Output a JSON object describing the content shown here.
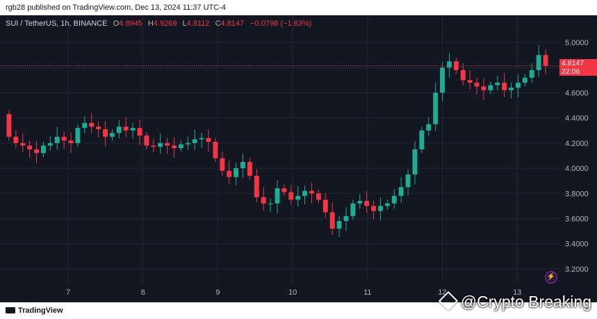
{
  "header": {
    "published": "rgb28 published on TradingView.com, Dec 13, 2024 11:37 UTC-4"
  },
  "legend": {
    "symbol": "SUI / TetherUS, 1h, BINANCE",
    "o_label": "O",
    "o_value": "4.8945",
    "h_label": "H",
    "h_value": "4.9269",
    "l_label": "L",
    "l_value": "4.8112",
    "c_label": "C",
    "c_value": "4.8147",
    "change": "−0.0798 (−1.63%)"
  },
  "last_price": {
    "price": "4.8147",
    "countdown": "22:06"
  },
  "footer": {
    "tradingview_logo": "TradingView",
    "watermark": "@Crypto Breaking",
    "watermark_icon": "diamond-logo-icon"
  },
  "colors": {
    "background": "#131722",
    "grid": "#232632",
    "up": "#22ab94",
    "down": "#f23645",
    "axis_text": "#b2b5be"
  },
  "chart_data": {
    "type": "candlestick",
    "symbol": "SUI / TetherUS",
    "interval": "1h",
    "exchange": "BINANCE",
    "x_ticks": [
      "7",
      "8",
      "9",
      "10",
      "11",
      "12",
      "13"
    ],
    "y_ticks": [
      "5.0000",
      "4.8000",
      "4.6000",
      "4.4000",
      "4.2000",
      "4.0000",
      "3.8000",
      "3.6000",
      "3.4000",
      "3.2000"
    ],
    "ylim": [
      3.1,
      5.05
    ],
    "grid": true,
    "last_price": 4.8147,
    "close_series": [
      4.25,
      4.2,
      4.18,
      4.15,
      4.12,
      4.18,
      4.2,
      4.25,
      4.22,
      4.2,
      4.32,
      4.36,
      4.33,
      4.31,
      4.25,
      4.28,
      4.33,
      4.3,
      4.32,
      4.26,
      4.18,
      4.17,
      4.2,
      4.18,
      4.16,
      4.19,
      4.2,
      4.23,
      4.24,
      4.21,
      4.08,
      3.98,
      3.93,
      4.0,
      4.05,
      3.94,
      3.77,
      3.72,
      3.72,
      3.84,
      3.81,
      3.75,
      3.78,
      3.82,
      3.8,
      3.75,
      3.65,
      3.52,
      3.58,
      3.62,
      3.72,
      3.74,
      3.7,
      3.66,
      3.7,
      3.72,
      3.78,
      3.85,
      3.95,
      4.15,
      4.3,
      4.35,
      4.6,
      4.8,
      4.85,
      4.78,
      4.7,
      4.68,
      4.65,
      4.62,
      4.66,
      4.68,
      4.62,
      4.64,
      4.68,
      4.72,
      4.78,
      4.9,
      4.8147
    ]
  }
}
